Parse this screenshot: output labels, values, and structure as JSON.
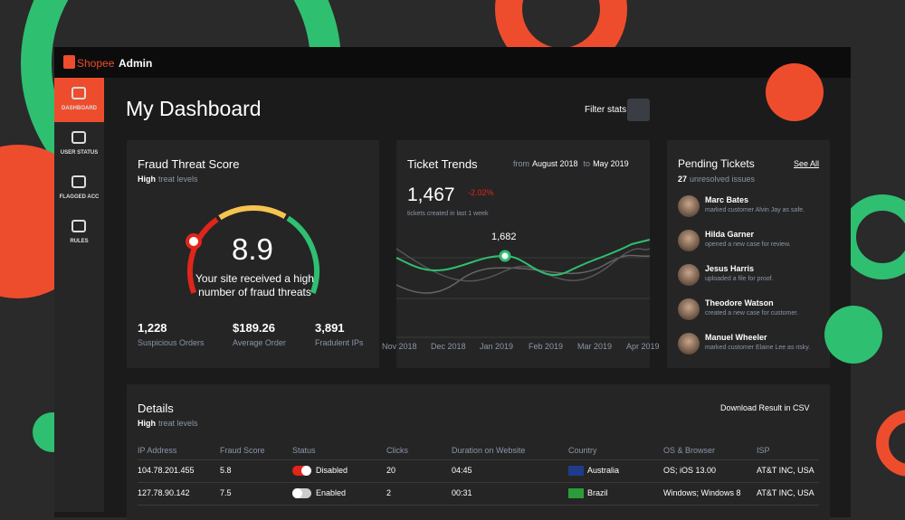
{
  "header": {
    "brand": "Shopee",
    "title": "Admin"
  },
  "sidebar": [
    {
      "label": "DASHBOARD",
      "active": true
    },
    {
      "label": "USER STATUS",
      "active": false
    },
    {
      "label": "FLAGGED ACC",
      "active": false
    },
    {
      "label": "RULES",
      "active": false
    }
  ],
  "page": {
    "title": "My Dashboard",
    "filter": "Filter stats"
  },
  "fraud": {
    "title": "Fraud Threat Score",
    "level": "High",
    "level_suffix": "treat levels",
    "score": "8.9",
    "message": "Your site received a high number of fraud threats",
    "stats": [
      {
        "value": "1,228",
        "label": "Suspicious Orders"
      },
      {
        "value": "$189.26",
        "label": "Average Order"
      },
      {
        "value": "3,891",
        "label": "Fradulent IPs"
      }
    ]
  },
  "trends": {
    "title": "Ticket Trends",
    "from": "from",
    "from_value": "August 2018",
    "to": "to",
    "to_value": "May 2019",
    "total": "1,467",
    "change": "-2.02%",
    "caption": "tickets created in last 1 week",
    "point_label": "1,682",
    "months": [
      "Nov 2018",
      "Dec 2018",
      "Jan 2019",
      "Feb 2019",
      "Mar 2019",
      "Apr 2019"
    ]
  },
  "pending": {
    "title": "Pending Tickets",
    "link": "See All",
    "count": "27",
    "count_suffix": "unresolved issues",
    "items": [
      {
        "name": "Marc Bates",
        "action": "marked customer Alvin Jay as safe."
      },
      {
        "name": "Hilda Garner",
        "action": "opened a new case for review."
      },
      {
        "name": "Jesus Harris",
        "action": "uploaded a file for proof."
      },
      {
        "name": "Theodore Watson",
        "action": "created a new case for customer."
      },
      {
        "name": "Manuel Wheeler",
        "action": "marked customer Elaine Lee as risky."
      }
    ]
  },
  "details": {
    "title": "Details",
    "level": "High",
    "level_suffix": "treat levels",
    "download": "Download Result in CSV",
    "columns": [
      "IP Address",
      "Fraud Score",
      "Status",
      "Clicks",
      "Duration on Website",
      "Country",
      "OS & Browser",
      "ISP"
    ],
    "rows": [
      [
        "104.78.201.455",
        "5.8",
        "Disabled",
        "20",
        "04:45",
        "Australia",
        "OS; iOS 13.00",
        "AT&T INC, USA"
      ],
      [
        "127.78.90.142",
        "7.5",
        "Enabled",
        "2",
        "00:31",
        "Brazil",
        "Windows; Windows 8",
        "AT&T INC, USA"
      ]
    ]
  }
}
